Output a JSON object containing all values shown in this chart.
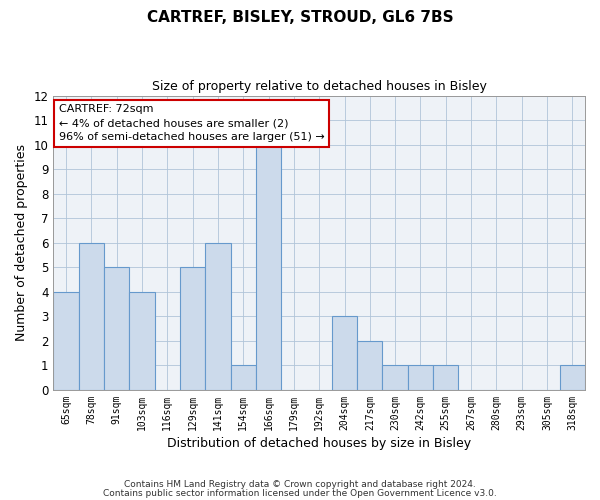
{
  "title": "CARTREF, BISLEY, STROUD, GL6 7BS",
  "subtitle": "Size of property relative to detached houses in Bisley",
  "xlabel": "Distribution of detached houses by size in Bisley",
  "ylabel": "Number of detached properties",
  "bar_color": "#ccdaeb",
  "bar_edge_color": "#6699cc",
  "categories": [
    "65sqm",
    "78sqm",
    "91sqm",
    "103sqm",
    "116sqm",
    "129sqm",
    "141sqm",
    "154sqm",
    "166sqm",
    "179sqm",
    "192sqm",
    "204sqm",
    "217sqm",
    "230sqm",
    "242sqm",
    "255sqm",
    "267sqm",
    "280sqm",
    "293sqm",
    "305sqm",
    "318sqm"
  ],
  "values": [
    4,
    6,
    5,
    4,
    0,
    5,
    6,
    1,
    10,
    0,
    0,
    3,
    2,
    1,
    1,
    1,
    0,
    0,
    0,
    0,
    1
  ],
  "ylim": [
    0,
    12
  ],
  "yticks": [
    0,
    1,
    2,
    3,
    4,
    5,
    6,
    7,
    8,
    9,
    10,
    11,
    12
  ],
  "annotation_text": "CARTREF: 72sqm\n← 4% of detached houses are smaller (2)\n96% of semi-detached houses are larger (51) →",
  "annotation_box_color": "#ffffff",
  "annotation_box_edge": "#cc0000",
  "footer1": "Contains HM Land Registry data © Crown copyright and database right 2024.",
  "footer2": "Contains public sector information licensed under the Open Government Licence v3.0.",
  "grid_color": "#b0c4d8",
  "background_color": "#eef2f7"
}
